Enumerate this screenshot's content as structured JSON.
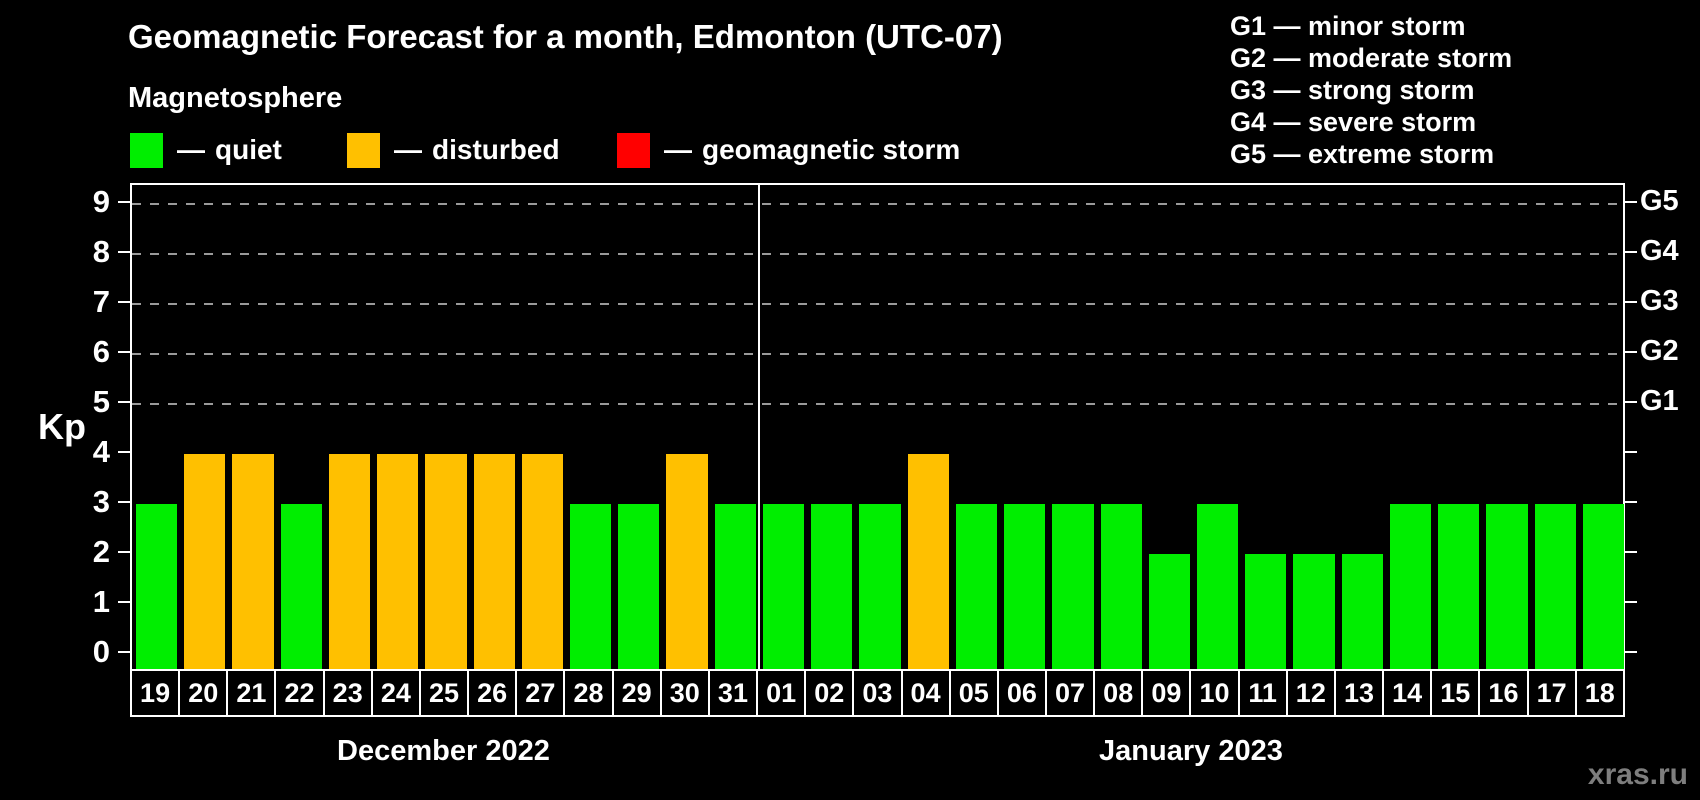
{
  "header": {
    "title": "Geomagnetic Forecast for a month, Edmonton (UTC-07)",
    "subtitle": "Magnetosphere"
  },
  "legend": {
    "separator": "—",
    "items": [
      {
        "name": "quiet",
        "label": "quiet",
        "color": "#00ee00",
        "x": 130
      },
      {
        "name": "disturbed",
        "label": "disturbed",
        "color": "#ffc000",
        "x": 347
      },
      {
        "name": "storm",
        "label": "geomagnetic storm",
        "color": "#ff0000",
        "x": 617
      }
    ]
  },
  "g_scale_legend": {
    "separator": "—",
    "items": [
      {
        "code": "G1",
        "label": "minor storm"
      },
      {
        "code": "G2",
        "label": "moderate storm"
      },
      {
        "code": "G3",
        "label": "strong storm"
      },
      {
        "code": "G4",
        "label": "severe storm"
      },
      {
        "code": "G5",
        "label": "extreme storm"
      }
    ]
  },
  "watermark": "xras.ru",
  "chart_data": {
    "type": "bar",
    "title": "Geomagnetic Forecast for a month, Edmonton (UTC-07)",
    "ylabel": "Kp",
    "ylim": [
      0,
      9
    ],
    "grid": "dashed horizontal at Kp 5-9 (G1-G5)",
    "legend_position": "top",
    "left_ticks": [
      0,
      1,
      2,
      3,
      4,
      5,
      6,
      7,
      8,
      9
    ],
    "gridlines_at": [
      5,
      6,
      7,
      8,
      9
    ],
    "right_tick_labels": {
      "5": "G1",
      "6": "G2",
      "7": "G3",
      "8": "G4",
      "9": "G5"
    },
    "status_colors": {
      "quiet": "#00ee00",
      "disturbed": "#ffc000",
      "storm": "#ff0000"
    },
    "months": [
      {
        "label": "December 2022",
        "days": [
          {
            "day": "19",
            "kp": 3,
            "status": "quiet"
          },
          {
            "day": "20",
            "kp": 4,
            "status": "disturbed"
          },
          {
            "day": "21",
            "kp": 4,
            "status": "disturbed"
          },
          {
            "day": "22",
            "kp": 3,
            "status": "quiet"
          },
          {
            "day": "23",
            "kp": 4,
            "status": "disturbed"
          },
          {
            "day": "24",
            "kp": 4,
            "status": "disturbed"
          },
          {
            "day": "25",
            "kp": 4,
            "status": "disturbed"
          },
          {
            "day": "26",
            "kp": 4,
            "status": "disturbed"
          },
          {
            "day": "27",
            "kp": 4,
            "status": "disturbed"
          },
          {
            "day": "28",
            "kp": 3,
            "status": "quiet"
          },
          {
            "day": "29",
            "kp": 3,
            "status": "quiet"
          },
          {
            "day": "30",
            "kp": 4,
            "status": "disturbed"
          },
          {
            "day": "31",
            "kp": 3,
            "status": "quiet"
          }
        ]
      },
      {
        "label": "January 2023",
        "days": [
          {
            "day": "01",
            "kp": 3,
            "status": "quiet"
          },
          {
            "day": "02",
            "kp": 3,
            "status": "quiet"
          },
          {
            "day": "03",
            "kp": 3,
            "status": "quiet"
          },
          {
            "day": "04",
            "kp": 4,
            "status": "disturbed"
          },
          {
            "day": "05",
            "kp": 3,
            "status": "quiet"
          },
          {
            "day": "06",
            "kp": 3,
            "status": "quiet"
          },
          {
            "day": "07",
            "kp": 3,
            "status": "quiet"
          },
          {
            "day": "08",
            "kp": 3,
            "status": "quiet"
          },
          {
            "day": "09",
            "kp": 2,
            "status": "quiet"
          },
          {
            "day": "10",
            "kp": 3,
            "status": "quiet"
          },
          {
            "day": "11",
            "kp": 2,
            "status": "quiet"
          },
          {
            "day": "12",
            "kp": 2,
            "status": "quiet"
          },
          {
            "day": "13",
            "kp": 2,
            "status": "quiet"
          },
          {
            "day": "14",
            "kp": 3,
            "status": "quiet"
          },
          {
            "day": "15",
            "kp": 3,
            "status": "quiet"
          },
          {
            "day": "16",
            "kp": 3,
            "status": "quiet"
          },
          {
            "day": "17",
            "kp": 3,
            "status": "quiet"
          },
          {
            "day": "18",
            "kp": 3,
            "status": "quiet"
          }
        ]
      }
    ]
  }
}
